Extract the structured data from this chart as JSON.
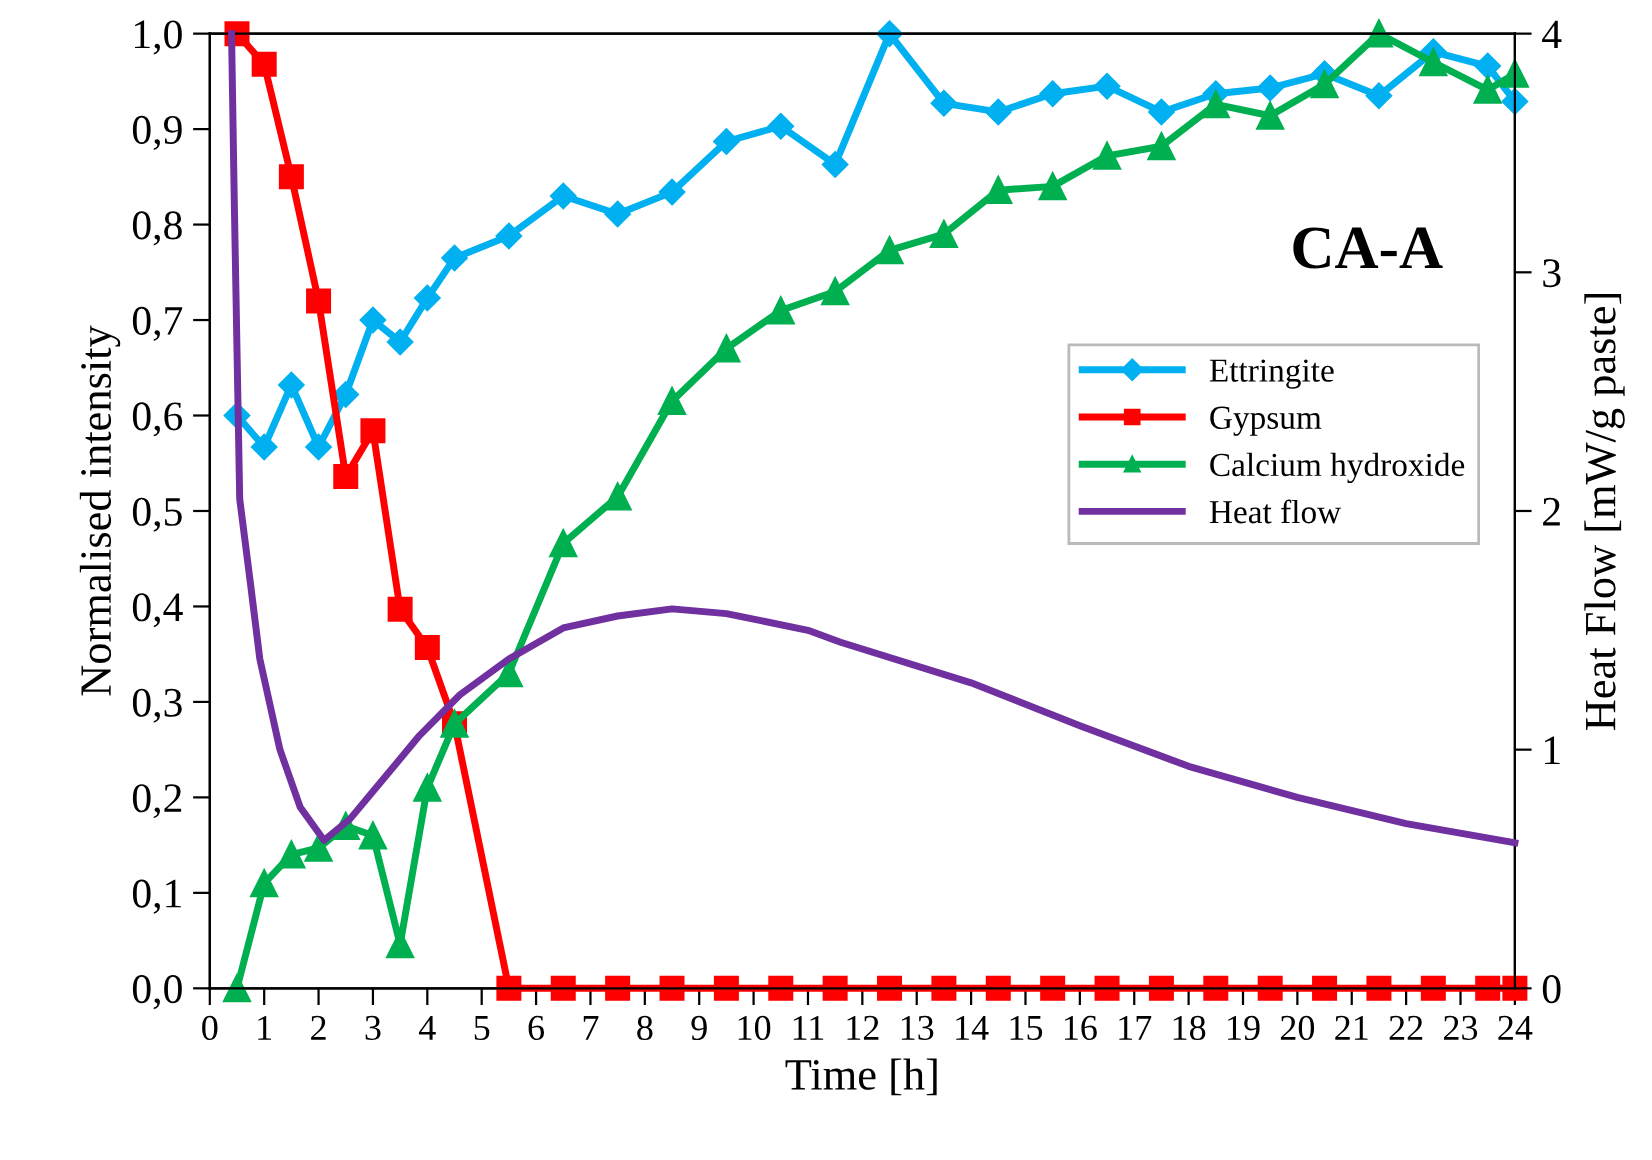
{
  "chart_data": {
    "type": "line",
    "xlabel": "Time [h]",
    "ylabel": "Normalised intensity",
    "y2label": "Heat Flow [mW/g paste]",
    "annotations": [
      "CA-A"
    ],
    "xlim": [
      0,
      24
    ],
    "xticks": [
      0,
      1,
      2,
      3,
      4,
      5,
      6,
      7,
      8,
      9,
      10,
      11,
      12,
      13,
      14,
      15,
      16,
      17,
      18,
      19,
      20,
      21,
      22,
      23,
      24
    ],
    "ylim": [
      0,
      1
    ],
    "yticks": [
      {
        "value": 0,
        "label": "0,0"
      },
      {
        "value": 0.1,
        "label": "0,1"
      },
      {
        "value": 0.2,
        "label": "0,2"
      },
      {
        "value": 0.3,
        "label": "0,3"
      },
      {
        "value": 0.4,
        "label": "0,4"
      },
      {
        "value": 0.5,
        "label": "0,5"
      },
      {
        "value": 0.6,
        "label": "0,6"
      },
      {
        "value": 0.7,
        "label": "0,7"
      },
      {
        "value": 0.8,
        "label": "0,8"
      },
      {
        "value": 0.9,
        "label": "0,9"
      },
      {
        "value": 1,
        "label": "1,0"
      }
    ],
    "y2lim": [
      0,
      4
    ],
    "y2ticks": [
      0,
      1,
      2,
      3,
      4
    ],
    "grid": false,
    "legend": "right",
    "line_style": "solid",
    "series": [
      {
        "name": "Ettringite",
        "color": "#00b0f0",
        "marker": "diamond",
        "x": [
          0.5,
          1,
          1.5,
          2,
          2.5,
          3,
          3.5,
          4,
          4.5,
          5.5,
          6.5,
          7.5,
          8.5,
          9.5,
          10.5,
          11.5,
          12.5,
          13.5,
          14.5,
          15.5,
          16.5,
          17.5,
          18.5,
          19.5,
          20.5,
          21.5,
          22.5,
          23.5,
          24
        ],
        "values": [
          0.6,
          0.567,
          0.632,
          0.567,
          0.622,
          0.7,
          0.677,
          0.723,
          0.765,
          0.788,
          0.83,
          0.811,
          0.834,
          0.887,
          0.903,
          0.863,
          1.0,
          0.927,
          0.918,
          0.937,
          0.945,
          0.918,
          0.937,
          0.943,
          0.958,
          0.935,
          0.981,
          0.966,
          0.929
        ]
      },
      {
        "name": "Gypsum",
        "color": "#ff0000",
        "marker": "square",
        "x": [
          0.5,
          1,
          1.5,
          2,
          2.5,
          3,
          3.5,
          4,
          4.5,
          5.5,
          6.5,
          7.5,
          8.5,
          9.5,
          10.5,
          11.5,
          12.5,
          13.5,
          14.5,
          15.5,
          16.5,
          17.5,
          18.5,
          19.5,
          20.5,
          21.5,
          22.5,
          23.5,
          24
        ],
        "values": [
          1.0,
          0.968,
          0.85,
          0.72,
          0.536,
          0.584,
          0.397,
          0.357,
          0.277,
          0,
          0,
          0,
          0,
          0,
          0,
          0,
          0,
          0,
          0,
          0,
          0,
          0,
          0,
          0,
          0,
          0,
          0,
          0,
          0
        ]
      },
      {
        "name": "Calcium hydroxide",
        "color": "#00b050",
        "marker": "triangle",
        "x": [
          0.5,
          1,
          1.5,
          2,
          2.5,
          3,
          3.5,
          4,
          4.5,
          5.5,
          6.5,
          7.5,
          8.5,
          9.5,
          10.5,
          11.5,
          12.5,
          13.5,
          14.5,
          15.5,
          16.5,
          17.5,
          18.5,
          19.5,
          20.5,
          21.5,
          22.5,
          23.5,
          24
        ],
        "values": [
          0,
          0.11,
          0.14,
          0.147,
          0.17,
          0.16,
          0.046,
          0.21,
          0.277,
          0.33,
          0.466,
          0.515,
          0.615,
          0.67,
          0.71,
          0.73,
          0.773,
          0.79,
          0.836,
          0.84,
          0.872,
          0.882,
          0.926,
          0.914,
          0.947,
          1.0,
          0.97,
          0.941,
          0.958
        ]
      },
      {
        "name": "Heat flow",
        "color": "#7030a0",
        "marker": "none",
        "axis": "y2",
        "x": [
          0.4,
          0.45,
          0.55,
          0.74,
          0.92,
          1.29,
          1.66,
          2.1,
          2.58,
          3.13,
          3.86,
          4.6,
          5.5,
          6.5,
          7.5,
          8.5,
          9.5,
          11,
          11.6,
          14,
          16,
          18,
          20,
          22,
          24
        ],
        "values": [
          4.0,
          3.3,
          2.05,
          1.71,
          1.38,
          1.0,
          0.76,
          0.62,
          0.71,
          0.86,
          1.06,
          1.23,
          1.38,
          1.51,
          1.56,
          1.59,
          1.57,
          1.5,
          1.45,
          1.28,
          1.1,
          0.93,
          0.8,
          0.69,
          0.61
        ]
      }
    ]
  }
}
